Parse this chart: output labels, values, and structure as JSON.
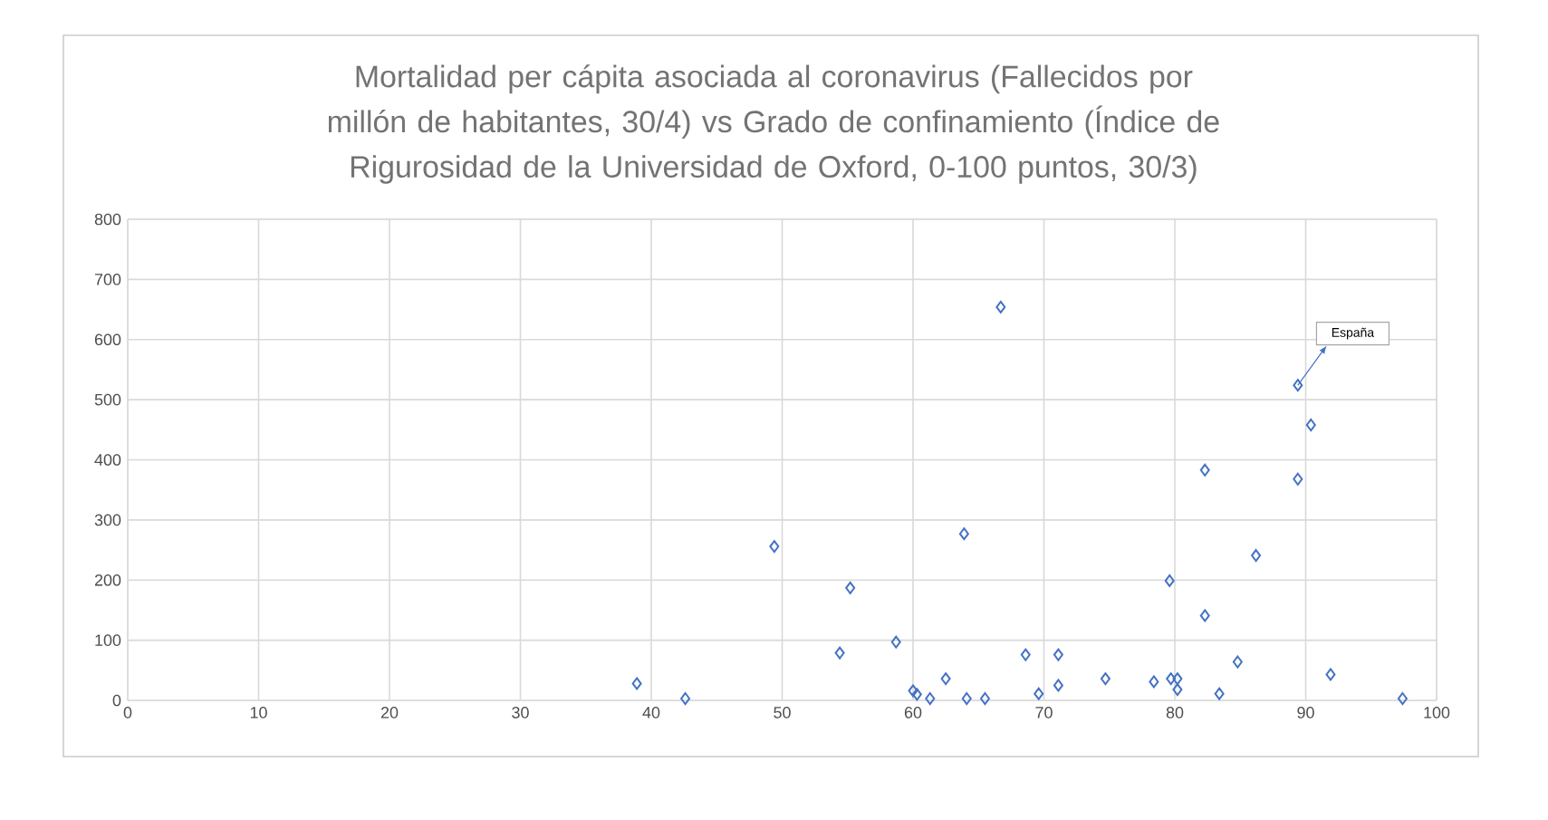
{
  "chart_data": {
    "type": "scatter",
    "title": "Mortalidad per cápita asociada al coronavirus (Fallecidos por millón de habitantes, 30/4) vs Grado de confinamiento (Índice de Rigurosidad de la Universidad de Oxford, 0-100 puntos, 30/3)",
    "x": [
      38.9,
      42.6,
      49.4,
      54.4,
      55.2,
      58.7,
      60.0,
      60.3,
      61.3,
      62.5,
      63.9,
      64.1,
      65.5,
      66.7,
      68.6,
      69.6,
      71.1,
      71.1,
      74.7,
      78.4,
      79.6,
      79.7,
      80.2,
      80.2,
      82.3,
      82.3,
      83.4,
      84.8,
      86.2,
      89.4,
      89.4,
      90.4,
      91.9,
      97.4
    ],
    "values": [
      28,
      3,
      256,
      79,
      187,
      97,
      16,
      10,
      3,
      36,
      277,
      3,
      3,
      654,
      76,
      11,
      76,
      25,
      36,
      31,
      199,
      36,
      36,
      18,
      383,
      141,
      11,
      64,
      241,
      524,
      368,
      458,
      43,
      3
    ],
    "color": "#4472c4",
    "marker": "diamond",
    "grid": true,
    "xlim": [
      0,
      100
    ],
    "xticks": [
      0,
      10,
      20,
      30,
      40,
      50,
      60,
      70,
      80,
      90,
      100
    ],
    "ylim": [
      0,
      800
    ],
    "yticks": [
      0,
      100,
      200,
      300,
      400,
      500,
      600,
      700,
      800
    ],
    "annotations": [
      {
        "text": "España",
        "x": 89.4,
        "y": 524
      }
    ]
  }
}
